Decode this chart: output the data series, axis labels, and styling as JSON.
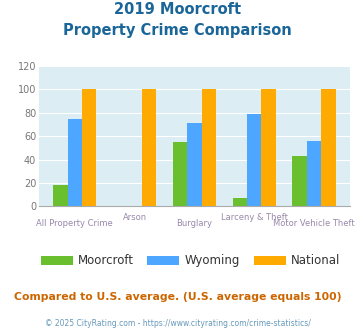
{
  "title_line1": "2019 Moorcroft",
  "title_line2": "Property Crime Comparison",
  "categories": [
    "All Property Crime",
    "Arson",
    "Burglary",
    "Larceny & Theft",
    "Motor Vehicle Theft"
  ],
  "series": {
    "Moorcroft": [
      18,
      0,
      55,
      7,
      43
    ],
    "Wyoming": [
      75,
      0,
      71,
      79,
      56
    ],
    "National": [
      100,
      100,
      100,
      100,
      100
    ]
  },
  "colors": {
    "Moorcroft": "#6abf2e",
    "Wyoming": "#4da6ff",
    "National": "#ffaa00"
  },
  "ylim": [
    0,
    120
  ],
  "yticks": [
    0,
    20,
    40,
    60,
    80,
    100,
    120
  ],
  "background_color": "#dceef4",
  "title_color": "#1a6699",
  "xlabel_color": "#9988aa",
  "footer_text": "Compared to U.S. average. (U.S. average equals 100)",
  "copyright_text": "© 2025 CityRating.com - https://www.cityrating.com/crime-statistics/",
  "footer_color": "#cc6600",
  "copyright_color": "#6699bb"
}
